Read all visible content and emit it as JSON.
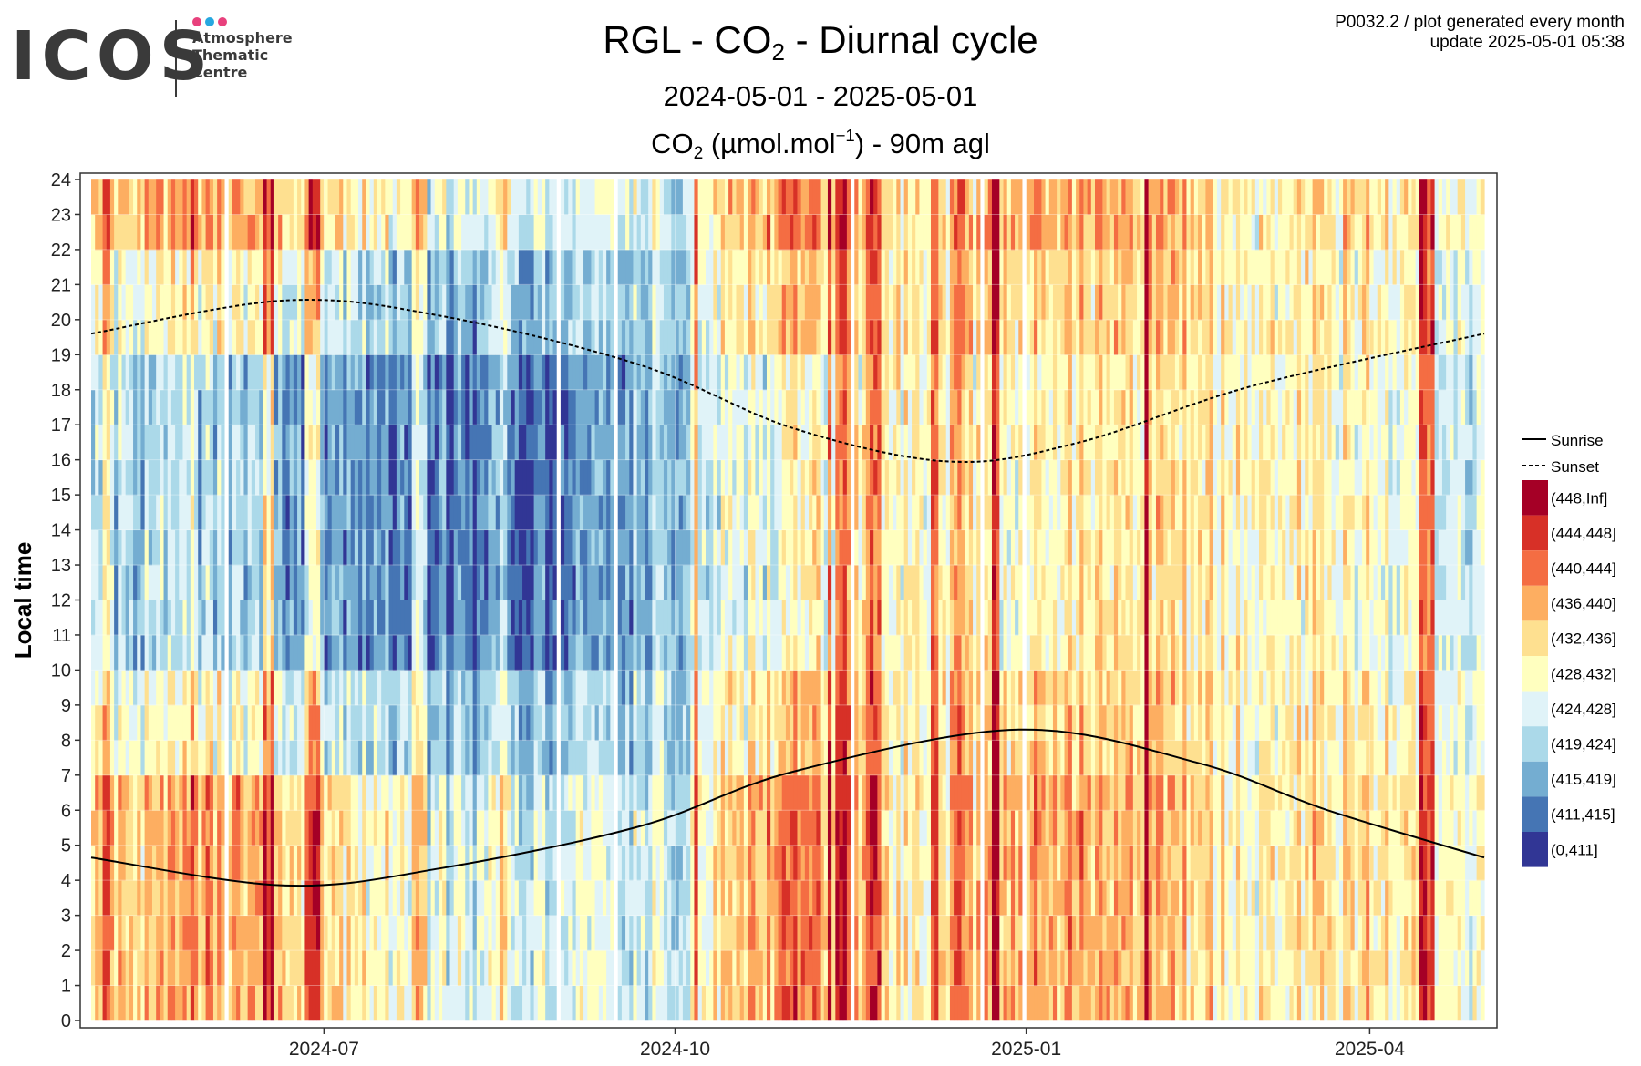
{
  "logo": {
    "text": "ICOS",
    "sub_lines": [
      "Atmosphere",
      "Thematic",
      "Centre"
    ],
    "dot_colors": [
      "#e8417d",
      "#27a8e0",
      "#e8417d"
    ]
  },
  "header": {
    "title_pre": "RGL - CO",
    "title_sub": "2",
    "title_post": " - Diurnal cycle",
    "date_range": "2024-05-01 - 2025-05-01",
    "unit_pre": "CO",
    "unit_sub": "2",
    "unit_mid": " (µmol.mol",
    "unit_sup": "−1",
    "unit_post": ") - 90m agl",
    "meta_line1": "P0032.2 / plot generated every month",
    "meta_line2": "update  2025-05-01 05:38"
  },
  "chart_data": {
    "type": "heatmap",
    "xlabel": "",
    "ylabel": "Local time",
    "x_range": [
      "2024-05-01",
      "2025-05-01"
    ],
    "x_ticks": [
      "2024-07",
      "2024-10",
      "2025-01",
      "2025-04"
    ],
    "y_range": [
      0,
      24
    ],
    "y_ticks": [
      0,
      1,
      2,
      3,
      4,
      5,
      6,
      7,
      8,
      9,
      10,
      11,
      12,
      13,
      14,
      15,
      16,
      17,
      18,
      19,
      20,
      21,
      22,
      23,
      24
    ],
    "grid": true,
    "legend_position": "right",
    "color_bins": [
      {
        "label": "(448,Inf]",
        "color": "#a50026"
      },
      {
        "label": "(444,448]",
        "color": "#d73027"
      },
      {
        "label": "(440,444]",
        "color": "#f46d43"
      },
      {
        "label": "(436,440]",
        "color": "#fdae61"
      },
      {
        "label": "(432,436]",
        "color": "#fee090"
      },
      {
        "label": "(428,432]",
        "color": "#ffffbf"
      },
      {
        "label": "(424,428]",
        "color": "#e0f3f8"
      },
      {
        "label": "(419,424]",
        "color": "#abd9e9"
      },
      {
        "label": "(415,419]",
        "color": "#74add1"
      },
      {
        "label": "(411,415]",
        "color": "#4575b4"
      },
      {
        "label": "(0,411]",
        "color": "#313695"
      }
    ],
    "series": [
      {
        "name": "Sunrise",
        "line_style": "solid",
        "dates": [
          "2024-05-01",
          "2024-06-21",
          "2024-08-01",
          "2024-09-22",
          "2024-11-01",
          "2024-12-30",
          "2025-02-15",
          "2025-03-21",
          "2025-05-01"
        ],
        "hours": [
          4.65,
          3.85,
          4.35,
          5.55,
          7.1,
          8.3,
          7.35,
          6.0,
          4.65
        ]
      },
      {
        "name": "Sunset",
        "line_style": "dashed",
        "dates": [
          "2024-05-01",
          "2024-06-21",
          "2024-08-01",
          "2024-09-22",
          "2024-11-01",
          "2024-12-12",
          "2025-01-15",
          "2025-03-01",
          "2025-05-01"
        ],
        "hours": [
          19.6,
          20.55,
          20.1,
          18.7,
          16.9,
          15.95,
          16.5,
          18.1,
          19.6
        ]
      }
    ],
    "daily_profile": {
      "dates": [
        "2024-05-01",
        "2024-06-01",
        "2024-07-01",
        "2024-08-01",
        "2024-09-01",
        "2024-10-01",
        "2024-11-01",
        "2024-12-01",
        "2025-01-01",
        "2025-02-01",
        "2025-03-01",
        "2025-04-01",
        "2025-05-01"
      ],
      "night_bin": [
        4,
        3,
        4,
        6,
        6,
        6,
        2,
        5,
        3,
        3,
        5,
        4,
        5
      ],
      "day_bin": [
        7,
        7,
        8,
        9,
        9,
        7,
        5,
        5,
        5,
        4,
        5,
        5,
        6
      ]
    }
  },
  "legend": {
    "sunrise_label": "Sunrise",
    "sunset_label": "Sunset"
  }
}
